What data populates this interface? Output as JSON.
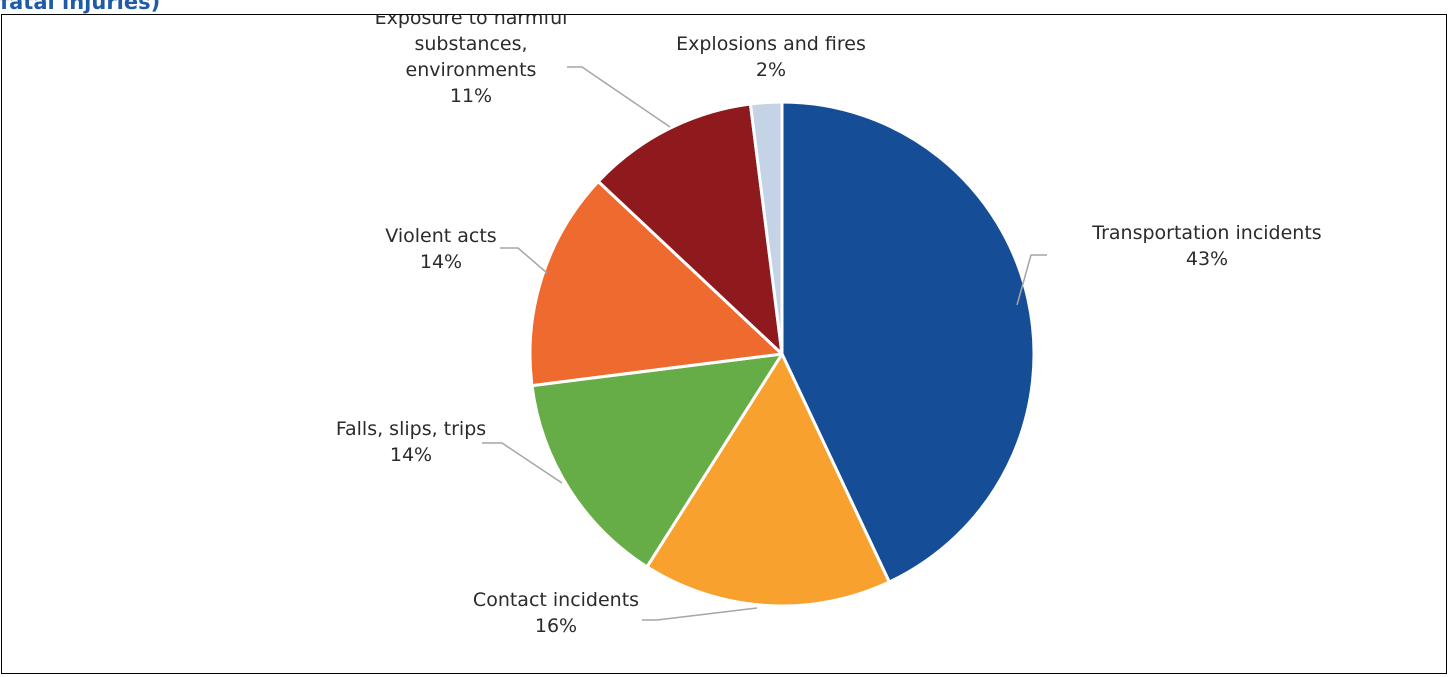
{
  "header": {
    "title_fragment": "fatal injuries)"
  },
  "chart_data": {
    "type": "pie",
    "title": "",
    "slices": [
      {
        "label": "Transportation incidents",
        "value": 43,
        "label_lines": [
          "Transportation incidents",
          "43%"
        ],
        "color": "#154E96"
      },
      {
        "label": "Contact incidents",
        "value": 16,
        "label_lines": [
          "Contact incidents",
          "16%"
        ],
        "color": "#F8A12E"
      },
      {
        "label": "Falls, slips, trips",
        "value": 14,
        "label_lines": [
          "Falls, slips, trips",
          "14%"
        ],
        "color": "#66AC47"
      },
      {
        "label": "Violent acts",
        "value": 14,
        "label_lines": [
          "Violent acts",
          "14%"
        ],
        "color": "#EF6A2E"
      },
      {
        "label": "Exposure to harmful substances, environments",
        "value": 11,
        "label_lines": [
          "Exposure to harmful",
          "substances,",
          "environments",
          "11%"
        ],
        "color": "#8F1A1D"
      },
      {
        "label": "Explosions and fires",
        "value": 2,
        "label_lines": [
          "Explosions and fires",
          "2%"
        ],
        "color": "#C5D3E6"
      }
    ],
    "start": "12 o'clock",
    "direction": "clockwise",
    "legend": "none",
    "data_labels": "outside with leader lines"
  }
}
